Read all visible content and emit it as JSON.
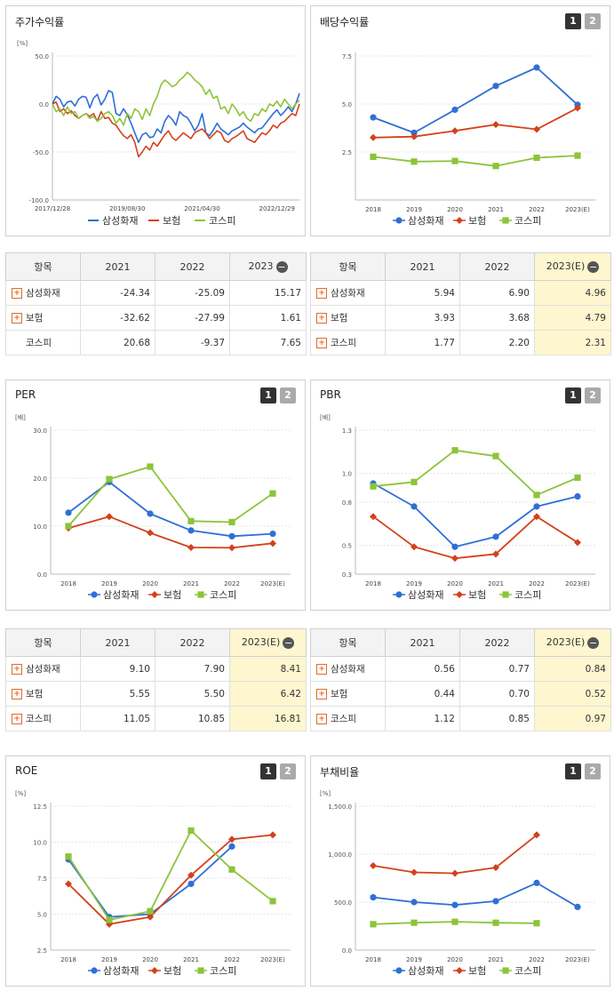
{
  "colors": {
    "samsung": "#2f6fd6",
    "insurance": "#d4411b",
    "kospi": "#8cc43a"
  },
  "panels": {
    "stock_return": {
      "title": "주가수익률",
      "unit": "[%]"
    },
    "dividend": {
      "title": "배당수익률",
      "unit": "",
      "btn1": "1",
      "btn2": "2"
    },
    "per": {
      "title": "PER",
      "unit": "[배]",
      "btn1": "1",
      "btn2": "2"
    },
    "pbr": {
      "title": "PBR",
      "unit": "[배]",
      "btn1": "1",
      "btn2": "2"
    },
    "roe": {
      "title": "ROE",
      "unit": "[%]",
      "btn1": "1",
      "btn2": "2"
    },
    "debt": {
      "title": "부채비율",
      "unit": "[%]",
      "btn1": "1",
      "btn2": "2"
    }
  },
  "legend": {
    "samsung": "삼성화재",
    "insurance": "보험",
    "kospi": "코스피"
  },
  "tables": {
    "stock_return": {
      "headers": [
        "항목",
        "2021",
        "2022",
        "2023"
      ],
      "rows": [
        {
          "name": "삼성화재",
          "vals": [
            "-24.34",
            "-25.09",
            "15.17"
          ]
        },
        {
          "name": "보험",
          "vals": [
            "-32.62",
            "-27.99",
            "1.61"
          ]
        },
        {
          "name": "코스피",
          "vals": [
            "20.68",
            "-9.37",
            "7.65"
          ]
        }
      ]
    },
    "dividend": {
      "headers": [
        "항목",
        "2021",
        "2022",
        "2023(E)"
      ],
      "rows": [
        {
          "name": "삼성화재",
          "vals": [
            "5.94",
            "6.90",
            "4.96"
          ]
        },
        {
          "name": "보험",
          "vals": [
            "3.93",
            "3.68",
            "4.79"
          ]
        },
        {
          "name": "코스피",
          "vals": [
            "1.77",
            "2.20",
            "2.31"
          ]
        }
      ]
    },
    "per": {
      "headers": [
        "항목",
        "2021",
        "2022",
        "2023(E)"
      ],
      "rows": [
        {
          "name": "삼성화재",
          "vals": [
            "9.10",
            "7.90",
            "8.41"
          ]
        },
        {
          "name": "보험",
          "vals": [
            "5.55",
            "5.50",
            "6.42"
          ]
        },
        {
          "name": "코스피",
          "vals": [
            "11.05",
            "10.85",
            "16.81"
          ]
        }
      ]
    },
    "pbr": {
      "headers": [
        "항목",
        "2021",
        "2022",
        "2023(E)"
      ],
      "rows": [
        {
          "name": "삼성화재",
          "vals": [
            "0.56",
            "0.77",
            "0.84"
          ]
        },
        {
          "name": "보험",
          "vals": [
            "0.44",
            "0.70",
            "0.52"
          ]
        },
        {
          "name": "코스피",
          "vals": [
            "1.12",
            "0.85",
            "0.97"
          ]
        }
      ]
    }
  },
  "chart_data": [
    {
      "id": "stock_return",
      "type": "line",
      "title": "주가수익률",
      "ylabel": "[%]",
      "ylim": [
        -100,
        50
      ],
      "yticks": [
        -100,
        -50,
        0,
        50
      ],
      "ytick_labels": [
        "-100.0",
        "-50.0",
        "0.0",
        "50.0"
      ],
      "xlim": [
        0,
        66
      ],
      "xticks": [
        0,
        20,
        40,
        60
      ],
      "xtick_labels": [
        "2017/12/28",
        "2019/08/30",
        "2021/04/30",
        "2022/12/29"
      ],
      "legend_position": "bottom",
      "series": [
        {
          "key": "samsung",
          "name": "삼성화재",
          "marker": "none",
          "values": [
            0,
            8,
            5,
            -3,
            2,
            3,
            -2,
            5,
            8,
            7,
            -4,
            6,
            10,
            -1,
            5,
            14,
            12,
            -10,
            -12,
            -5,
            -11,
            -20,
            -30,
            -40,
            -32,
            -30,
            -35,
            -34,
            -26,
            -30,
            -18,
            -12,
            -16,
            -22,
            -8,
            -12,
            -14,
            -20,
            -28,
            -22,
            -10,
            -30,
            -33,
            -27,
            -20,
            -26,
            -29,
            -32,
            -28,
            -26,
            -24,
            -20,
            -24,
            -27,
            -30,
            -26,
            -25,
            -20,
            -15,
            -10,
            -6,
            -12,
            -8,
            -3,
            -8,
            0,
            11
          ]
        },
        {
          "key": "insurance",
          "name": "보험",
          "marker": "none",
          "values": [
            0,
            2,
            -8,
            -5,
            -10,
            -7,
            -12,
            -15,
            -12,
            -10,
            -13,
            -10,
            -18,
            -8,
            -15,
            -14,
            -20,
            -22,
            -28,
            -33,
            -36,
            -32,
            -40,
            -55,
            -50,
            -44,
            -48,
            -40,
            -44,
            -38,
            -32,
            -28,
            -35,
            -38,
            -34,
            -30,
            -33,
            -36,
            -30,
            -28,
            -26,
            -30,
            -36,
            -32,
            -28,
            -30,
            -38,
            -40,
            -36,
            -34,
            -31,
            -28,
            -36,
            -38,
            -40,
            -35,
            -30,
            -32,
            -28,
            -22,
            -25,
            -20,
            -18,
            -14,
            -10,
            -12,
            0
          ]
        },
        {
          "key": "kospi",
          "name": "코스피",
          "marker": "none",
          "values": [
            0,
            -8,
            -5,
            -12,
            -3,
            -10,
            -8,
            -15,
            -12,
            -10,
            -15,
            -13,
            -18,
            -15,
            -10,
            -8,
            -12,
            -20,
            -15,
            -22,
            -10,
            -15,
            -5,
            -8,
            -16,
            -5,
            -12,
            0,
            8,
            20,
            25,
            22,
            18,
            20,
            25,
            28,
            33,
            30,
            25,
            22,
            18,
            10,
            15,
            6,
            8,
            -5,
            -3,
            -10,
            0,
            -5,
            -12,
            -8,
            -15,
            -18,
            -10,
            -12,
            -5,
            -8,
            0,
            -2,
            3,
            -3,
            5,
            0,
            -5,
            0,
            4
          ]
        }
      ]
    },
    {
      "id": "dividend",
      "type": "line",
      "title": "배당수익률",
      "ylabel": "",
      "ylim": [
        0,
        7.5
      ],
      "yticks": [
        2.5,
        5.0,
        7.5
      ],
      "ytick_labels": [
        "2.5",
        "5.0",
        "7.5"
      ],
      "categories": [
        "2018",
        "2019",
        "2020",
        "2021",
        "2022",
        "2023(E)"
      ],
      "legend_position": "bottom",
      "series": [
        {
          "key": "samsung",
          "name": "삼성화재",
          "marker": "circle",
          "values": [
            4.3,
            3.5,
            4.7,
            5.94,
            6.9,
            4.96
          ]
        },
        {
          "key": "insurance",
          "name": "보험",
          "marker": "diamond",
          "values": [
            3.25,
            3.3,
            3.6,
            3.93,
            3.68,
            4.79
          ]
        },
        {
          "key": "kospi",
          "name": "코스피",
          "marker": "square",
          "values": [
            2.25,
            2.0,
            2.03,
            1.77,
            2.2,
            2.31
          ]
        }
      ]
    },
    {
      "id": "per",
      "type": "line",
      "title": "PER",
      "ylabel": "[배]",
      "ylim": [
        0,
        30
      ],
      "yticks": [
        0,
        10,
        20,
        30
      ],
      "ytick_labels": [
        "0.0",
        "10.0",
        "20.0",
        "30.0"
      ],
      "categories": [
        "2018",
        "2019",
        "2020",
        "2021",
        "2022",
        "2023(E)"
      ],
      "legend_position": "bottom",
      "series": [
        {
          "key": "samsung",
          "name": "삼성화재",
          "marker": "circle",
          "values": [
            12.8,
            19.2,
            12.6,
            9.1,
            7.9,
            8.41
          ]
        },
        {
          "key": "insurance",
          "name": "보험",
          "marker": "diamond",
          "values": [
            9.6,
            12.0,
            8.6,
            5.55,
            5.5,
            6.42
          ]
        },
        {
          "key": "kospi",
          "name": "코스피",
          "marker": "square",
          "values": [
            10.0,
            19.8,
            22.4,
            11.05,
            10.85,
            16.81
          ]
        }
      ]
    },
    {
      "id": "pbr",
      "type": "line",
      "title": "PBR",
      "ylabel": "[배]",
      "ylim": [
        0.3,
        1.3
      ],
      "yticks": [
        0.3,
        0.5,
        0.8,
        1.0,
        1.3
      ],
      "ytick_labels": [
        "0.3",
        "0.5",
        "0.8",
        "1.0",
        "1.3"
      ],
      "categories": [
        "2018",
        "2019",
        "2020",
        "2021",
        "2022",
        "2023(E)"
      ],
      "legend_position": "bottom",
      "series": [
        {
          "key": "samsung",
          "name": "삼성화재",
          "marker": "circle",
          "values": [
            0.93,
            0.77,
            0.49,
            0.56,
            0.77,
            0.84
          ]
        },
        {
          "key": "insurance",
          "name": "보험",
          "marker": "diamond",
          "values": [
            0.7,
            0.49,
            0.41,
            0.44,
            0.7,
            0.52
          ]
        },
        {
          "key": "kospi",
          "name": "코스피",
          "marker": "square",
          "values": [
            0.91,
            0.94,
            1.16,
            1.12,
            0.85,
            0.97
          ]
        }
      ]
    },
    {
      "id": "roe",
      "type": "line",
      "title": "ROE",
      "ylabel": "[%]",
      "ylim": [
        2.5,
        12.5
      ],
      "yticks": [
        2.5,
        5.0,
        7.5,
        10.0,
        12.5
      ],
      "ytick_labels": [
        "2.5",
        "5.0",
        "7.5",
        "10.0",
        "12.5"
      ],
      "categories": [
        "2018",
        "2019",
        "2020",
        "2021",
        "2022",
        "2023(E)"
      ],
      "legend_position": "bottom",
      "series": [
        {
          "key": "samsung",
          "name": "삼성화재",
          "marker": "circle",
          "values": [
            8.8,
            4.8,
            5.0,
            7.1,
            9.7,
            null
          ]
        },
        {
          "key": "insurance",
          "name": "보험",
          "marker": "diamond",
          "values": [
            7.1,
            4.3,
            4.8,
            7.7,
            10.2,
            10.5
          ]
        },
        {
          "key": "kospi",
          "name": "코스피",
          "marker": "square",
          "values": [
            9.0,
            4.6,
            5.2,
            10.8,
            8.1,
            5.9
          ]
        }
      ]
    },
    {
      "id": "debt",
      "type": "line",
      "title": "부채비율",
      "ylabel": "[%]",
      "ylim": [
        0,
        1500
      ],
      "yticks": [
        0,
        500,
        1000,
        1500
      ],
      "ytick_labels": [
        "0.0",
        "500.0",
        "1,000.0",
        "1,500.0"
      ],
      "categories": [
        "2018",
        "2019",
        "2020",
        "2021",
        "2022",
        "2023(E)"
      ],
      "legend_position": "bottom",
      "series": [
        {
          "key": "samsung",
          "name": "삼성화재",
          "marker": "circle",
          "values": [
            550,
            500,
            470,
            510,
            700,
            450
          ]
        },
        {
          "key": "insurance",
          "name": "보험",
          "marker": "diamond",
          "values": [
            880,
            810,
            800,
            860,
            1200,
            null
          ]
        },
        {
          "key": "kospi",
          "name": "코스피",
          "marker": "square",
          "values": [
            270,
            285,
            295,
            285,
            280,
            null
          ]
        }
      ]
    }
  ]
}
